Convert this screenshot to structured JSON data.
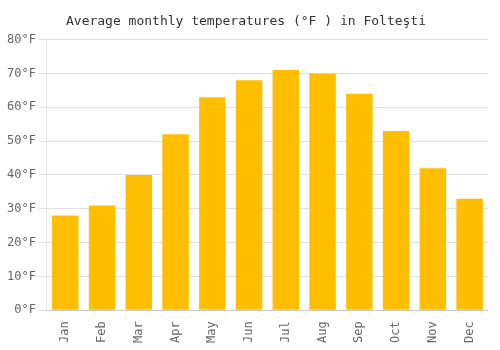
{
  "chart_data": {
    "type": "bar",
    "title": "Average monthly temperatures (°F ) in Folteşti",
    "categories": [
      "Jan",
      "Feb",
      "Mar",
      "Apr",
      "May",
      "Jun",
      "Jul",
      "Aug",
      "Sep",
      "Oct",
      "Nov",
      "Dec"
    ],
    "values": [
      28,
      31,
      40,
      52,
      63,
      68,
      71,
      70,
      64,
      53,
      42,
      33
    ],
    "color": "#FFBF00",
    "ylim": [
      0,
      80
    ],
    "yticks": [
      {
        "value": 0,
        "label": "0°F"
      },
      {
        "value": 10,
        "label": "10°F"
      },
      {
        "value": 20,
        "label": "20°F"
      },
      {
        "value": 30,
        "label": "30°F"
      },
      {
        "value": 40,
        "label": "40°F"
      },
      {
        "value": 50,
        "label": "50°F"
      },
      {
        "value": 60,
        "label": "60°F"
      },
      {
        "value": 70,
        "label": "70°F"
      },
      {
        "value": 80,
        "label": "80°F"
      }
    ],
    "grid": true
  }
}
